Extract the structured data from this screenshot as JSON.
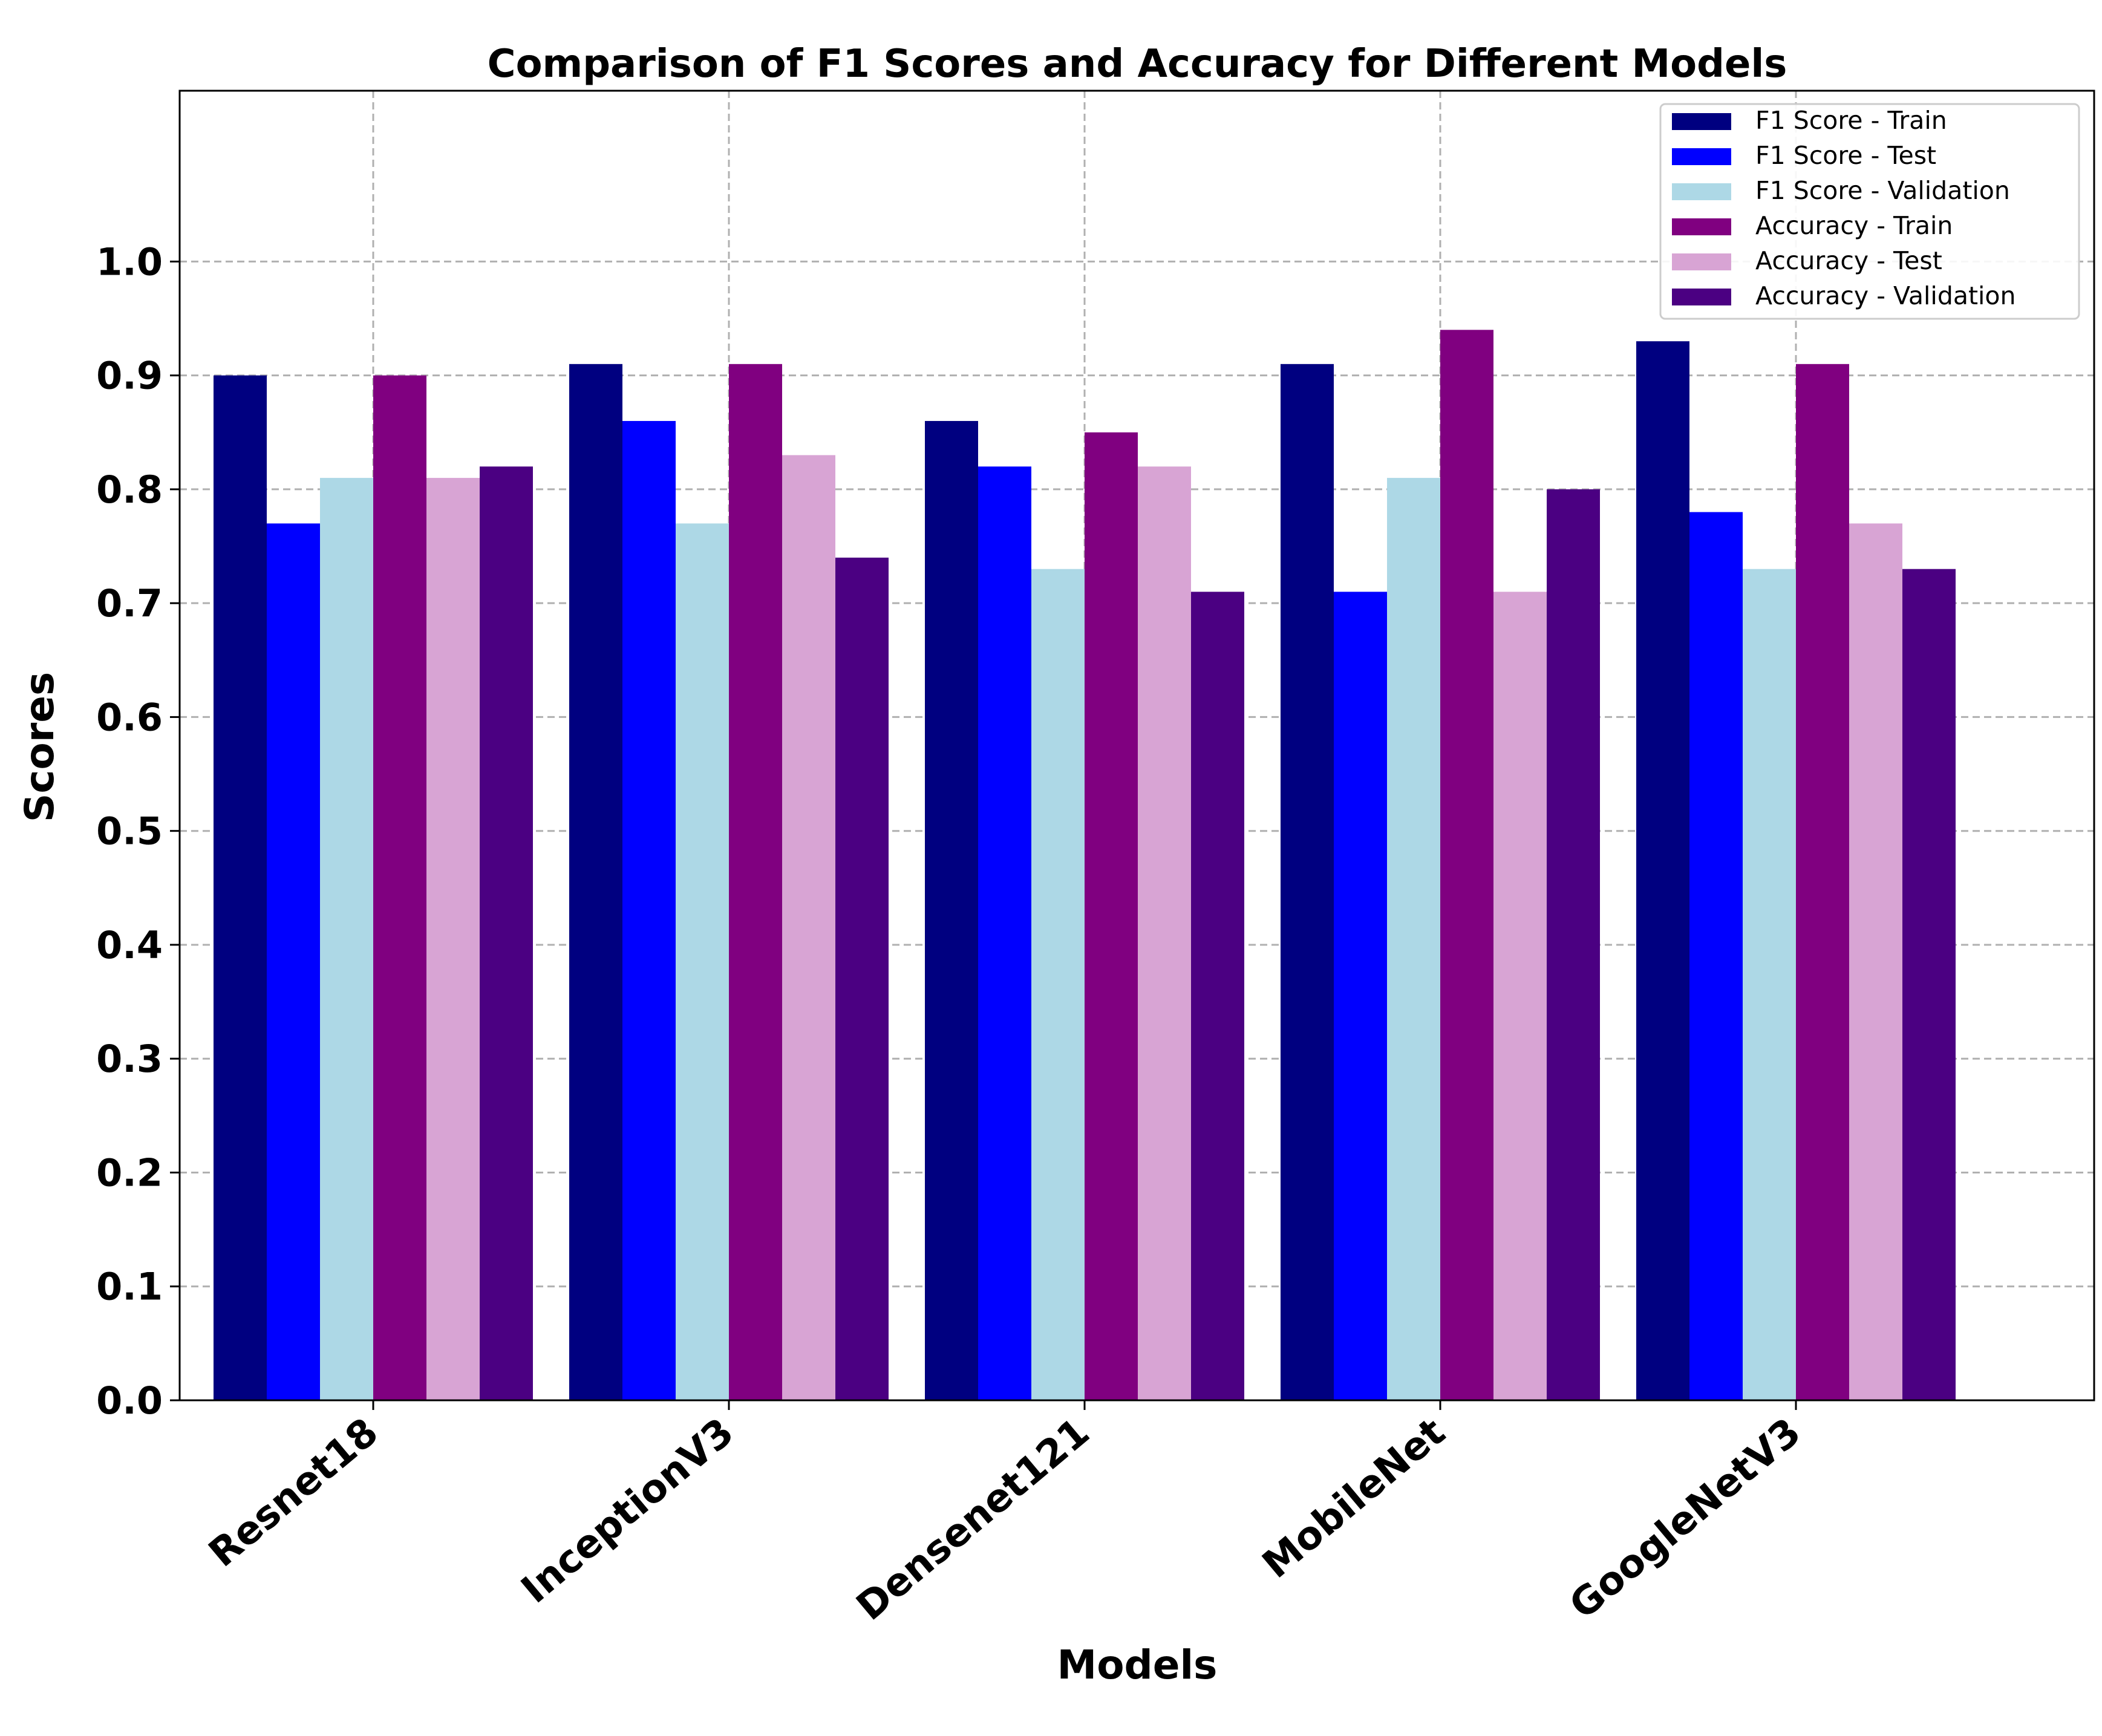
{
  "chart_data": {
    "type": "bar",
    "title": "Comparison of F1 Scores and Accuracy for Different Models",
    "xlabel": "Models",
    "ylabel": "Scores",
    "ylim": [
      0,
      1.15
    ],
    "yticks": [
      "0.0",
      "0.1",
      "0.2",
      "0.3",
      "0.4",
      "0.5",
      "0.6",
      "0.7",
      "0.8",
      "0.9",
      "1.0"
    ],
    "grid": true,
    "legend_position": "top-right",
    "categories": [
      "Resnet18",
      "InceptionV3",
      "Densenet121",
      "MobileNet",
      "GoogleNetV3"
    ],
    "series": [
      {
        "name": "F1 Score - Train",
        "color": "#000080",
        "values": [
          0.9,
          0.91,
          0.86,
          0.91,
          0.93
        ]
      },
      {
        "name": "F1 Score - Test",
        "color": "#0000ff",
        "values": [
          0.77,
          0.86,
          0.82,
          0.71,
          0.78
        ]
      },
      {
        "name": "F1 Score - Validation",
        "color": "#add8e6",
        "values": [
          0.81,
          0.77,
          0.73,
          0.81,
          0.73
        ]
      },
      {
        "name": "Accuracy - Train",
        "color": "#800080",
        "values": [
          0.9,
          0.91,
          0.85,
          0.94,
          0.91
        ]
      },
      {
        "name": "Accuracy - Test",
        "color": "#d8a4d4",
        "values": [
          0.81,
          0.83,
          0.82,
          0.71,
          0.77
        ]
      },
      {
        "name": "Accuracy - Validation",
        "color": "#4b0082",
        "values": [
          0.82,
          0.74,
          0.71,
          0.8,
          0.73
        ]
      }
    ]
  }
}
